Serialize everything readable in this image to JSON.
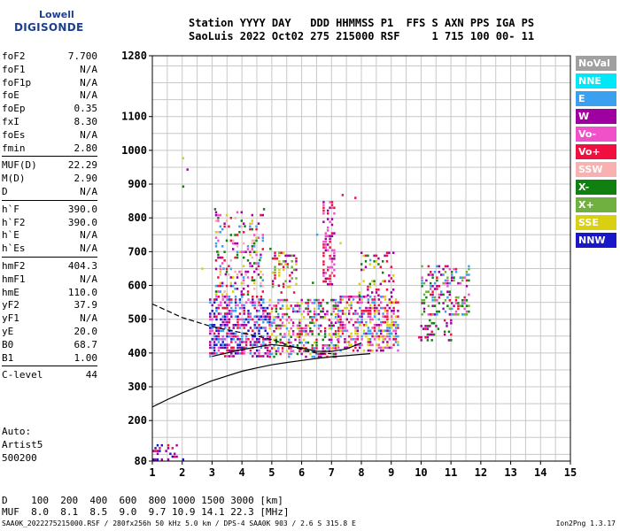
{
  "logo": {
    "line1": "Lowell",
    "line2": "DIGISONDE"
  },
  "header": {
    "line1": "Station YYYY DAY   DDD HHMMSS P1  FFS S AXN PPS IGA PS",
    "line2": "SaoLuis 2022 Oct02 275 215000 RSF     1 715 100 00- 11"
  },
  "params": {
    "group1": [
      {
        "name": "foF2",
        "value": "7.700"
      },
      {
        "name": "foF1",
        "value": "N/A"
      },
      {
        "name": "foF1p",
        "value": "N/A"
      },
      {
        "name": "foE",
        "value": "N/A"
      },
      {
        "name": "foEp",
        "value": "0.35"
      },
      {
        "name": "fxI",
        "value": "8.30"
      },
      {
        "name": "foEs",
        "value": "N/A"
      },
      {
        "name": "fmin",
        "value": "2.80"
      }
    ],
    "group2": [
      {
        "name": "MUF(D)",
        "value": "22.29"
      },
      {
        "name": "M(D)",
        "value": "2.90"
      },
      {
        "name": "D",
        "value": "N/A"
      }
    ],
    "group3": [
      {
        "name": "h`F",
        "value": "390.0"
      },
      {
        "name": "h`F2",
        "value": "390.0"
      },
      {
        "name": "h`E",
        "value": "N/A"
      },
      {
        "name": "h`Es",
        "value": "N/A"
      }
    ],
    "group4": [
      {
        "name": "hmF2",
        "value": "404.3"
      },
      {
        "name": "hmF1",
        "value": "N/A"
      },
      {
        "name": "hmE",
        "value": "110.0"
      },
      {
        "name": "yF2",
        "value": "37.9"
      },
      {
        "name": "yF1",
        "value": "N/A"
      },
      {
        "name": "yE",
        "value": "20.0"
      },
      {
        "name": "B0",
        "value": "68.7"
      },
      {
        "name": "B1",
        "value": "1.00"
      }
    ],
    "group5": [
      {
        "name": "C-level",
        "value": "44"
      }
    ]
  },
  "auto": {
    "line1": "Auto:",
    "line2": "Artist5",
    "line3": "500200"
  },
  "legend": [
    {
      "label": "NoVal",
      "color": "#a0a0a0"
    },
    {
      "label": "NNE",
      "color": "#00e8f8"
    },
    {
      "label": "E",
      "color": "#3ca0f0"
    },
    {
      "label": "W",
      "color": "#a000a0"
    },
    {
      "label": "Vo-",
      "color": "#f050c8"
    },
    {
      "label": "Vo+",
      "color": "#f01040"
    },
    {
      "label": "SSW",
      "color": "#f8b0b0"
    },
    {
      "label": "X-",
      "color": "#108010"
    },
    {
      "label": "X+",
      "color": "#70b040"
    },
    {
      "label": "SSE",
      "color": "#d8d010"
    },
    {
      "label": "NNW",
      "color": "#1818c8"
    }
  ],
  "muf_table": {
    "line1": "D    100  200  400  600  800 1000 1500 3000 [km]",
    "line2": "MUF  8.0  8.1  8.5  9.0  9.7 10.9 14.1 22.3 [MHz]"
  },
  "footer": {
    "text": "SAA0K_2022275215000.RSF / 280fx256h 50 kHz 5.0 km / DPS-4 SAA0K 903 / 2.6 S 315.8 E",
    "version": "Ion2Png 1.3.17"
  },
  "chart_data": {
    "type": "scatter",
    "x_ticks": [
      "1",
      "2",
      "3",
      "4",
      "5",
      "6",
      "7",
      "8",
      "9",
      "10",
      "11",
      "12",
      "13",
      "14",
      "15"
    ],
    "y_ticks": [
      "80",
      "200",
      "300",
      "400",
      "500",
      "600",
      "700",
      "800",
      "900",
      "1000",
      "1100",
      "1280"
    ],
    "xlim": [
      1,
      15
    ],
    "ylim": [
      80,
      1280
    ],
    "grid": true,
    "profile_solid": [
      [
        1.0,
        240
      ],
      [
        1.5,
        262
      ],
      [
        2.0,
        282
      ],
      [
        2.5,
        300
      ],
      [
        3.0,
        318
      ],
      [
        3.5,
        332
      ],
      [
        4.0,
        346
      ],
      [
        4.5,
        356
      ],
      [
        5.0,
        365
      ],
      [
        5.5,
        372
      ],
      [
        6.0,
        378
      ],
      [
        6.5,
        384
      ],
      [
        7.0,
        389
      ],
      [
        7.5,
        392
      ],
      [
        8.0,
        396
      ],
      [
        8.3,
        398
      ]
    ],
    "trace_solid": [
      [
        3.0,
        390
      ],
      [
        4.0,
        410
      ],
      [
        5.0,
        425
      ],
      [
        6.0,
        415
      ],
      [
        6.5,
        405
      ],
      [
        7.0,
        405
      ],
      [
        7.5,
        412
      ],
      [
        8.0,
        430
      ]
    ],
    "trace_dashed": [
      [
        1.0,
        545
      ],
      [
        2.0,
        505
      ],
      [
        3.0,
        478
      ],
      [
        4.0,
        460
      ],
      [
        5.0,
        440
      ],
      [
        5.5,
        425
      ],
      [
        6.0,
        410
      ],
      [
        6.5,
        400
      ],
      [
        7.0,
        398
      ]
    ],
    "echo_regions": [
      {
        "x": [
          2.9,
          4.9
        ],
        "y": [
          390,
          570
        ],
        "density": 0.55,
        "colors": [
          "#a000a0",
          "#f050c8",
          "#f01040",
          "#3ca0f0",
          "#1818c8"
        ]
      },
      {
        "x": [
          3.1,
          4.7
        ],
        "y": [
          570,
          820
        ],
        "density": 0.25,
        "colors": [
          "#a000a0",
          "#f050c8",
          "#f01040",
          "#3ca0f0",
          "#d8d010",
          "#108010",
          "#f8b0b0"
        ]
      },
      {
        "x": [
          4.9,
          7.2
        ],
        "y": [
          385,
          560
        ],
        "density": 0.45,
        "colors": [
          "#a000a0",
          "#f050c8",
          "#f01040",
          "#3ca0f0",
          "#d8d010",
          "#108010"
        ]
      },
      {
        "x": [
          5.0,
          5.8
        ],
        "y": [
          580,
          700
        ],
        "density": 0.35,
        "colors": [
          "#d8d010",
          "#a000a0",
          "#f01040",
          "#70b040"
        ]
      },
      {
        "x": [
          6.7,
          7.1
        ],
        "y": [
          600,
          850
        ],
        "density": 0.35,
        "colors": [
          "#a000a0",
          "#f050c8",
          "#f01040"
        ]
      },
      {
        "x": [
          7.2,
          9.2
        ],
        "y": [
          410,
          570
        ],
        "density": 0.5,
        "colors": [
          "#f01040",
          "#f050c8",
          "#a000a0",
          "#3ca0f0",
          "#d8d010"
        ]
      },
      {
        "x": [
          7.9,
          9.1
        ],
        "y": [
          570,
          700
        ],
        "density": 0.2,
        "colors": [
          "#f01040",
          "#a000a0",
          "#d8d010",
          "#108010"
        ]
      },
      {
        "x": [
          10.0,
          11.6
        ],
        "y": [
          510,
          660
        ],
        "density": 0.35,
        "colors": [
          "#108010",
          "#70b040",
          "#3ca0f0",
          "#f050c8",
          "#a000a0",
          "#f01040"
        ]
      },
      {
        "x": [
          9.9,
          11.0
        ],
        "y": [
          440,
          500
        ],
        "density": 0.3,
        "colors": [
          "#f01040",
          "#a000a0",
          "#108010"
        ]
      },
      {
        "x": [
          1.0,
          2.0
        ],
        "y": [
          80,
          130
        ],
        "density": 0.2,
        "colors": [
          "#a000a0",
          "#1818c8",
          "#f01040"
        ]
      },
      {
        "x": [
          2.0,
          9.0
        ],
        "y": [
          600,
          980
        ],
        "density": 0.006,
        "colors": [
          "#a000a0",
          "#3ca0f0",
          "#f01040",
          "#108010",
          "#d8d010"
        ]
      }
    ]
  }
}
